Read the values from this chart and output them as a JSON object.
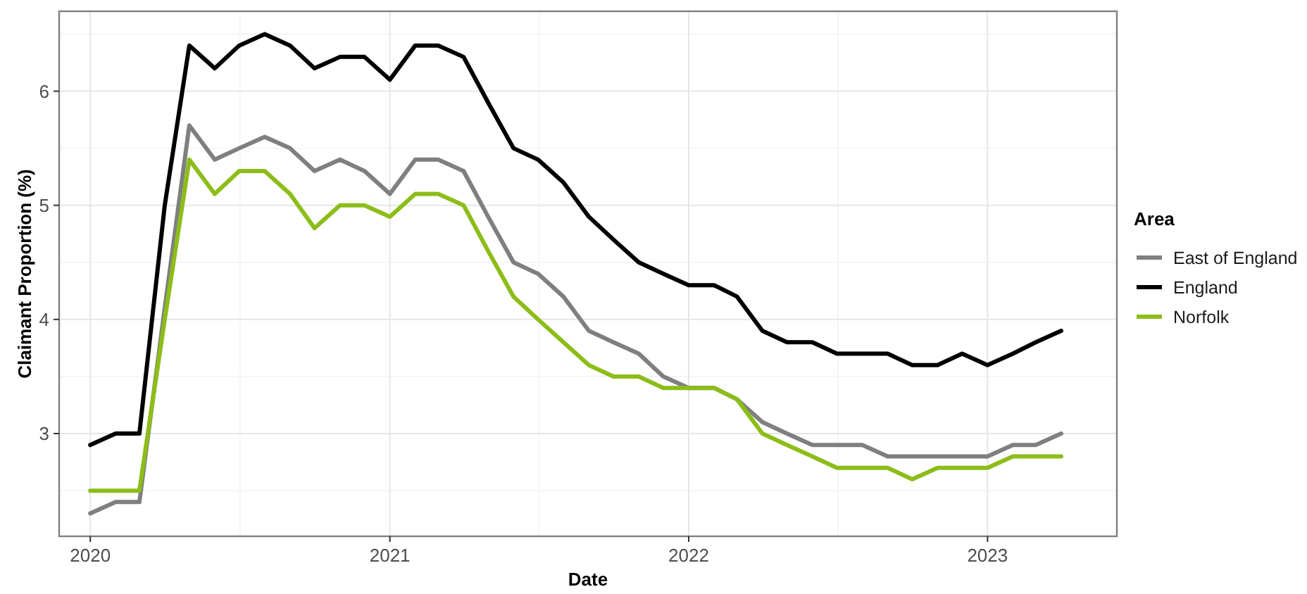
{
  "chart_data": {
    "type": "line",
    "xlabel": "Date",
    "ylabel": "Claimant Proportion (%)",
    "legend_title": "Area",
    "legend": "right",
    "grid": true,
    "line_style": "solid",
    "marker": "none",
    "x": [
      "2020-01",
      "2020-02",
      "2020-03",
      "2020-04",
      "2020-05",
      "2020-06",
      "2020-07",
      "2020-08",
      "2020-09",
      "2020-10",
      "2020-11",
      "2020-12",
      "2021-01",
      "2021-02",
      "2021-03",
      "2021-04",
      "2021-05",
      "2021-06",
      "2021-07",
      "2021-08",
      "2021-09",
      "2021-10",
      "2021-11",
      "2021-12",
      "2022-01",
      "2022-02",
      "2022-03",
      "2022-04",
      "2022-05",
      "2022-06",
      "2022-07",
      "2022-08",
      "2022-09",
      "2022-10",
      "2022-11",
      "2022-12",
      "2023-01",
      "2023-02",
      "2023-03",
      "2023-04"
    ],
    "xlim": [
      "2019-11-24",
      "2023-06-08"
    ],
    "xticks": [
      {
        "value": "2020-01-01",
        "label": "2020"
      },
      {
        "value": "2021-01-01",
        "label": "2021"
      },
      {
        "value": "2022-01-01",
        "label": "2022"
      },
      {
        "value": "2023-01-01",
        "label": "2023"
      }
    ],
    "ylim": [
      2.1,
      6.7
    ],
    "yticks": [
      3,
      4,
      5,
      6
    ],
    "series": [
      {
        "name": "East of England",
        "color": "#7f7f7f",
        "values": [
          2.3,
          2.4,
          2.4,
          4.1,
          5.7,
          5.4,
          5.5,
          5.6,
          5.5,
          5.3,
          5.4,
          5.3,
          5.1,
          5.4,
          5.4,
          5.3,
          4.9,
          4.5,
          4.4,
          4.2,
          3.9,
          3.8,
          3.7,
          3.5,
          3.4,
          3.4,
          3.3,
          3.1,
          3.0,
          2.9,
          2.9,
          2.9,
          2.8,
          2.8,
          2.8,
          2.8,
          2.8,
          2.9,
          2.9,
          3.0
        ]
      },
      {
        "name": "England",
        "color": "#000000",
        "values": [
          2.9,
          3.0,
          3.0,
          5.0,
          6.4,
          6.2,
          6.4,
          6.5,
          6.4,
          6.2,
          6.3,
          6.3,
          6.1,
          6.4,
          6.4,
          6.3,
          5.9,
          5.5,
          5.4,
          5.2,
          4.9,
          4.7,
          4.5,
          4.4,
          4.3,
          4.3,
          4.2,
          3.9,
          3.8,
          3.8,
          3.7,
          3.7,
          3.7,
          3.6,
          3.6,
          3.7,
          3.6,
          3.7,
          3.8,
          3.9
        ]
      },
      {
        "name": "Norfolk",
        "color": "#8cbd18",
        "values": [
          2.5,
          2.5,
          2.5,
          4.0,
          5.4,
          5.1,
          5.3,
          5.3,
          5.1,
          4.8,
          5.0,
          5.0,
          4.9,
          5.1,
          5.1,
          5.0,
          4.6,
          4.2,
          4.0,
          3.8,
          3.6,
          3.5,
          3.5,
          3.4,
          3.4,
          3.4,
          3.3,
          3.0,
          2.9,
          2.8,
          2.7,
          2.7,
          2.7,
          2.6,
          2.7,
          2.7,
          2.7,
          2.8,
          2.8,
          2.8
        ]
      }
    ]
  }
}
